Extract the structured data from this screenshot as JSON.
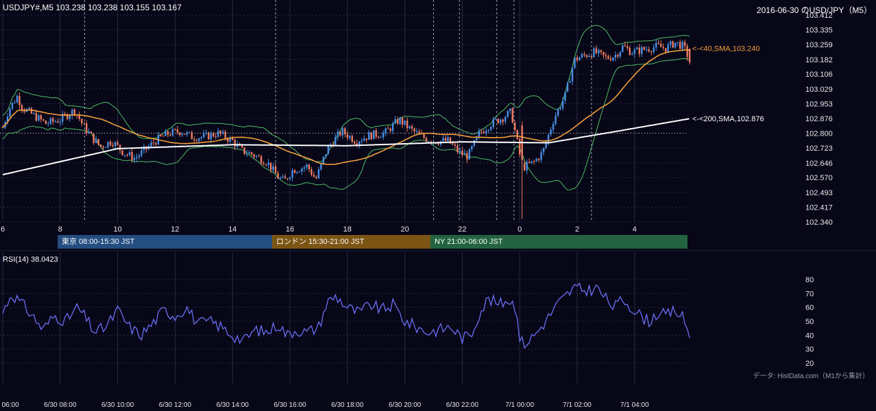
{
  "header": {
    "instrument_line": "USDJPY#,M5 103.238 103.238 103.155 103.167",
    "chart_caption": "2016-06-30 のUSD/JPY（M5）"
  },
  "sessions": {
    "tokyo": "東京 08:00-15:30 JST",
    "london": "ロンドン 15:30-21:00 JST",
    "ny": "NY 21:00-06:00 JST"
  },
  "rsi_panel": {
    "title": "RSI(14) 38.0423"
  },
  "credit": "データ: HistData.com（M1から集計）",
  "colors": {
    "background": "#070718",
    "candle_up": "#4a90e8",
    "candle_down": "#f07d62",
    "sma40": "#f5a03c",
    "sma200": "#ffffff",
    "bollinger": "#4fbf63",
    "rsi": "#6b6ff5",
    "grid": "#2a2a44"
  },
  "chart_data": [
    {
      "type": "candlestick",
      "title": "",
      "ylim": [
        102.34,
        103.412
      ],
      "y_ticks": [
        "103.412",
        "103.335",
        "103.259",
        "103.182",
        "103.106",
        "103.029",
        "102.953",
        "102.876",
        "102.800",
        "102.723",
        "102.646",
        "102.570",
        "102.493",
        "102.417",
        "102.340"
      ],
      "x_ticks": [
        "6",
        "8",
        "10",
        "12",
        "14",
        "16",
        "18",
        "20",
        "22",
        "0",
        "2",
        "4"
      ],
      "x_tick_hours": [
        6,
        8,
        10,
        12,
        14,
        16,
        18,
        20,
        22,
        24,
        26,
        28
      ],
      "x_range_hours": [
        6,
        29.95
      ],
      "reference_line": 102.8,
      "anchors": [
        [
          6.0,
          102.83
        ],
        [
          6.2,
          102.92
        ],
        [
          6.5,
          102.99
        ],
        [
          6.7,
          102.93
        ],
        [
          7.1,
          102.89
        ],
        [
          7.5,
          102.85
        ],
        [
          8.0,
          102.87
        ],
        [
          8.5,
          102.92
        ],
        [
          8.8,
          102.84
        ],
        [
          9.1,
          102.78
        ],
        [
          9.4,
          102.73
        ],
        [
          9.8,
          102.76
        ],
        [
          10.2,
          102.7
        ],
        [
          10.6,
          102.67
        ],
        [
          11.0,
          102.72
        ],
        [
          11.4,
          102.77
        ],
        [
          11.8,
          102.8
        ],
        [
          12.2,
          102.81
        ],
        [
          12.6,
          102.78
        ],
        [
          13.0,
          102.78
        ],
        [
          13.5,
          102.8
        ],
        [
          14.0,
          102.76
        ],
        [
          14.3,
          102.71
        ],
        [
          14.7,
          102.69
        ],
        [
          15.2,
          102.65
        ],
        [
          15.6,
          102.57
        ],
        [
          15.8,
          102.55
        ],
        [
          16.1,
          102.61
        ],
        [
          16.4,
          102.62
        ],
        [
          16.6,
          102.63
        ],
        [
          16.9,
          102.56
        ],
        [
          17.3,
          102.72
        ],
        [
          17.8,
          102.81
        ],
        [
          18.3,
          102.76
        ],
        [
          18.8,
          102.79
        ],
        [
          19.3,
          102.8
        ],
        [
          19.8,
          102.87
        ],
        [
          20.2,
          102.82
        ],
        [
          20.6,
          102.78
        ],
        [
          21.0,
          102.76
        ],
        [
          21.5,
          102.76
        ],
        [
          21.9,
          102.7
        ],
        [
          22.2,
          102.68
        ],
        [
          22.6,
          102.8
        ],
        [
          23.0,
          102.85
        ],
        [
          23.4,
          102.88
        ],
        [
          23.7,
          102.91
        ],
        [
          24.0,
          102.69
        ],
        [
          24.1,
          102.62
        ],
        [
          24.5,
          102.65
        ],
        [
          24.8,
          102.7
        ],
        [
          25.2,
          102.88
        ],
        [
          25.6,
          103.0
        ],
        [
          25.9,
          103.18
        ],
        [
          26.2,
          103.2
        ],
        [
          26.6,
          103.22
        ],
        [
          27.0,
          103.19
        ],
        [
          27.3,
          103.2
        ],
        [
          27.6,
          103.25
        ],
        [
          27.9,
          103.22
        ],
        [
          28.2,
          103.23
        ],
        [
          28.5,
          103.24
        ],
        [
          28.8,
          103.25
        ],
        [
          29.1,
          103.24
        ],
        [
          29.4,
          103.27
        ],
        [
          29.7,
          103.25
        ],
        [
          29.95,
          103.167
        ]
      ],
      "last_bar": {
        "open": 103.238,
        "high": 103.238,
        "low": 103.155,
        "close": 103.167
      },
      "series": [
        {
          "name": "40,SMA",
          "last": 103.24,
          "label": "<-<40,SMA,103.240"
        },
        {
          "name": "200,SMA",
          "last": 102.876,
          "label": "<-<200,SMA,102.876"
        }
      ],
      "bollinger": true
    },
    {
      "type": "line",
      "title": "RSI(14)",
      "ylim": [
        20,
        80
      ],
      "y_ticks": [
        "80",
        "70",
        "60",
        "50",
        "40",
        "30",
        "20"
      ],
      "last": 38.0423,
      "anchors": [
        [
          6.0,
          56
        ],
        [
          6.3,
          70
        ],
        [
          6.6,
          64
        ],
        [
          7.0,
          55
        ],
        [
          7.4,
          44
        ],
        [
          7.8,
          54
        ],
        [
          8.2,
          50
        ],
        [
          8.6,
          60
        ],
        [
          8.9,
          52
        ],
        [
          9.2,
          42
        ],
        [
          9.6,
          46
        ],
        [
          10.0,
          58
        ],
        [
          10.4,
          46
        ],
        [
          10.8,
          40
        ],
        [
          11.2,
          48
        ],
        [
          11.6,
          58
        ],
        [
          12.0,
          54
        ],
        [
          12.4,
          60
        ],
        [
          12.8,
          48
        ],
        [
          13.2,
          50
        ],
        [
          13.6,
          46
        ],
        [
          14.0,
          40
        ],
        [
          14.4,
          36
        ],
        [
          14.8,
          44
        ],
        [
          15.2,
          42
        ],
        [
          15.6,
          48
        ],
        [
          15.9,
          40
        ],
        [
          16.2,
          44
        ],
        [
          16.6,
          42
        ],
        [
          17.0,
          46
        ],
        [
          17.3,
          64
        ],
        [
          17.6,
          68
        ],
        [
          18.0,
          60
        ],
        [
          18.4,
          56
        ],
        [
          18.8,
          62
        ],
        [
          19.2,
          58
        ],
        [
          19.6,
          62
        ],
        [
          20.0,
          50
        ],
        [
          20.4,
          46
        ],
        [
          20.8,
          42
        ],
        [
          21.2,
          44
        ],
        [
          21.6,
          46
        ],
        [
          22.0,
          38
        ],
        [
          22.3,
          40
        ],
        [
          22.6,
          56
        ],
        [
          22.9,
          66
        ],
        [
          23.3,
          62
        ],
        [
          23.6,
          66
        ],
        [
          23.9,
          60
        ],
        [
          24.0,
          36
        ],
        [
          24.2,
          34
        ],
        [
          24.6,
          42
        ],
        [
          24.9,
          50
        ],
        [
          25.3,
          62
        ],
        [
          25.6,
          68
        ],
        [
          25.9,
          74
        ],
        [
          26.3,
          72
        ],
        [
          26.7,
          74
        ],
        [
          27.0,
          66
        ],
        [
          27.3,
          60
        ],
        [
          27.6,
          66
        ],
        [
          27.9,
          60
        ],
        [
          28.2,
          54
        ],
        [
          28.5,
          50
        ],
        [
          28.8,
          56
        ],
        [
          29.1,
          54
        ],
        [
          29.4,
          58
        ],
        [
          29.7,
          52
        ],
        [
          29.95,
          38.0423
        ]
      ]
    }
  ],
  "time_axis": {
    "labels": [
      "6/30 06:00",
      "6/30 08:00",
      "6/30 10:00",
      "6/30 12:00",
      "6/30 14:00",
      "6/30 16:00",
      "6/30 18:00",
      "6/30 20:00",
      "6/30 22:00",
      "7/1 00:00",
      "7/1 02:00",
      "7/1 04:00"
    ],
    "hours": [
      6,
      8,
      10,
      12,
      14,
      16,
      18,
      20,
      22,
      24,
      26,
      28
    ]
  },
  "session_markers_hours": [
    8.85,
    15.5,
    21.0,
    21.9,
    23.2,
    23.8,
    26.5
  ]
}
